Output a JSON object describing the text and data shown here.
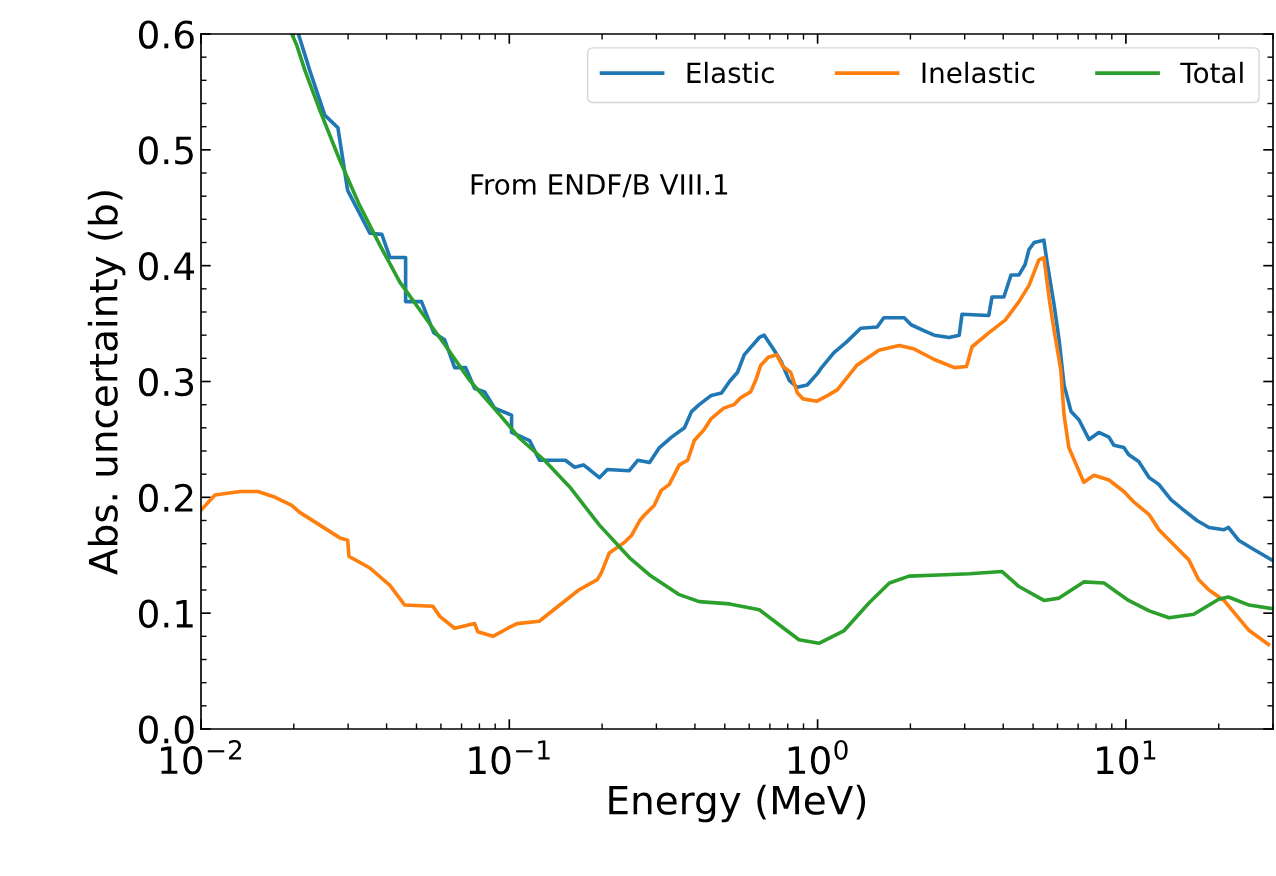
{
  "chart_data": {
    "type": "line",
    "xlabel": "Energy (MeV)",
    "ylabel": "Abs. uncertainty (b)",
    "log": "x",
    "grid": false,
    "legend": "top right",
    "marker": "none",
    "line_style": "solid",
    "xlim": [
      0.01,
      30
    ],
    "ylim": [
      0,
      0.6
    ],
    "xticks": [
      {
        "value": 0.01,
        "label": "10$^{−2}$"
      },
      {
        "value": 0.1,
        "label": "10$^{−1}$"
      },
      {
        "value": 1,
        "label": "10$^{0}$"
      },
      {
        "value": 10,
        "label": "10$^{1}$"
      }
    ],
    "yticks": [
      {
        "value": 0,
        "label": "0.0"
      },
      {
        "value": 0.1,
        "label": "0.1"
      },
      {
        "value": 0.2,
        "label": "0.2"
      },
      {
        "value": 0.3,
        "label": "0.3"
      },
      {
        "value": 0.4,
        "label": "0.4"
      },
      {
        "value": 0.5,
        "label": "0.5"
      },
      {
        "value": 0.6,
        "label": "0.6"
      }
    ],
    "annotations": [
      "From ENDF/B VIII.1"
    ],
    "series": [
      {
        "name": "Elastic",
        "color": "#1f77b4",
        "x": [
          0.0207,
          0.0225,
          0.0252,
          0.0278,
          0.0299,
          0.0353,
          0.0386,
          0.041,
          0.0461,
          0.0461,
          0.0519,
          0.0569,
          0.0617,
          0.0665,
          0.0722,
          0.0772,
          0.0832,
          0.0896,
          0.1017,
          0.1017,
          0.1164,
          0.1253,
          0.152,
          0.163,
          0.174,
          0.182,
          0.196,
          0.208,
          0.245,
          0.261,
          0.285,
          0.307,
          0.336,
          0.37,
          0.39,
          0.413,
          0.452,
          0.488,
          0.518,
          0.55,
          0.578,
          0.647,
          0.671,
          0.723,
          0.762,
          0.809,
          0.859,
          0.925,
          1.0,
          1.03,
          1.13,
          1.24,
          1.38,
          1.56,
          1.64,
          1.91,
          2.01,
          2.21,
          2.39,
          2.67,
          2.88,
          2.94,
          3.59,
          3.68,
          4.02,
          4.24,
          4.5,
          4.71,
          4.85,
          5.04,
          5.42,
          5.55,
          5.85,
          6.07,
          6.3,
          6.64,
          7.04,
          7.59,
          8.17,
          8.81,
          9.14,
          9.85,
          10.2,
          11.0,
          11.9,
          12.8,
          14.0,
          15.4,
          17.0,
          18.6,
          20.8,
          21.5,
          23.2,
          26.0,
          28.0,
          29.7
        ],
        "values": [
          0.6,
          0.569,
          0.53,
          0.519,
          0.465,
          0.428,
          0.427,
          0.407,
          0.407,
          0.369,
          0.369,
          0.342,
          0.336,
          0.312,
          0.312,
          0.294,
          0.291,
          0.277,
          0.271,
          0.256,
          0.249,
          0.232,
          0.232,
          0.226,
          0.228,
          0.224,
          0.217,
          0.224,
          0.223,
          0.232,
          0.23,
          0.243,
          0.252,
          0.26,
          0.274,
          0.28,
          0.288,
          0.29,
          0.3,
          0.308,
          0.323,
          0.338,
          0.34,
          0.327,
          0.317,
          0.301,
          0.295,
          0.297,
          0.307,
          0.312,
          0.325,
          0.334,
          0.346,
          0.347,
          0.355,
          0.355,
          0.349,
          0.344,
          0.34,
          0.338,
          0.34,
          0.358,
          0.357,
          0.373,
          0.373,
          0.392,
          0.392,
          0.401,
          0.414,
          0.42,
          0.422,
          0.403,
          0.366,
          0.336,
          0.297,
          0.274,
          0.267,
          0.25,
          0.256,
          0.252,
          0.245,
          0.243,
          0.237,
          0.231,
          0.217,
          0.211,
          0.198,
          0.189,
          0.18,
          0.174,
          0.172,
          0.174,
          0.163,
          0.155,
          0.15,
          0.146
        ]
      },
      {
        "name": "Inelastic",
        "color": "#ff7f0e",
        "x": [
          0.01,
          0.0111,
          0.0134,
          0.0153,
          0.0174,
          0.0197,
          0.0209,
          0.0243,
          0.0282,
          0.0299,
          0.0302,
          0.0353,
          0.041,
          0.0458,
          0.0565,
          0.0596,
          0.0665,
          0.0772,
          0.079,
          0.0885,
          0.0989,
          0.106,
          0.125,
          0.168,
          0.193,
          0.199,
          0.211,
          0.236,
          0.249,
          0.265,
          0.275,
          0.295,
          0.311,
          0.33,
          0.356,
          0.379,
          0.398,
          0.427,
          0.452,
          0.496,
          0.535,
          0.563,
          0.606,
          0.63,
          0.654,
          0.692,
          0.737,
          0.771,
          0.818,
          0.86,
          0.897,
          0.995,
          1.08,
          1.16,
          1.34,
          1.58,
          1.84,
          2.06,
          2.39,
          2.78,
          3.04,
          3.17,
          3.59,
          4.06,
          4.5,
          4.85,
          5.22,
          5.42,
          5.65,
          5.85,
          6.15,
          6.3,
          6.53,
          7.3,
          7.88,
          8.81,
          9.85,
          10.6,
          11.9,
          12.8,
          14.3,
          16.0,
          17.2,
          18.6,
          20.8,
          25.1,
          29.0
        ],
        "values": [
          0.189,
          0.202,
          0.205,
          0.205,
          0.2,
          0.193,
          0.187,
          0.176,
          0.165,
          0.163,
          0.149,
          0.139,
          0.124,
          0.107,
          0.106,
          0.097,
          0.087,
          0.091,
          0.084,
          0.08,
          0.087,
          0.091,
          0.093,
          0.12,
          0.129,
          0.135,
          0.152,
          0.161,
          0.167,
          0.18,
          0.185,
          0.193,
          0.206,
          0.211,
          0.228,
          0.232,
          0.249,
          0.258,
          0.268,
          0.277,
          0.28,
          0.286,
          0.291,
          0.301,
          0.314,
          0.321,
          0.323,
          0.313,
          0.308,
          0.29,
          0.285,
          0.283,
          0.288,
          0.293,
          0.314,
          0.327,
          0.331,
          0.328,
          0.319,
          0.312,
          0.313,
          0.33,
          0.342,
          0.353,
          0.369,
          0.383,
          0.405,
          0.407,
          0.37,
          0.344,
          0.31,
          0.271,
          0.243,
          0.213,
          0.219,
          0.215,
          0.205,
          0.196,
          0.185,
          0.172,
          0.159,
          0.146,
          0.129,
          0.12,
          0.111,
          0.085,
          0.073
        ]
      },
      {
        "name": "Total",
        "color": "#2ca02c",
        "x": [
          0.0197,
          0.0204,
          0.0217,
          0.0243,
          0.0282,
          0.0327,
          0.038,
          0.0441,
          0.0512,
          0.0617,
          0.0744,
          0.0933,
          0.108,
          0.13,
          0.157,
          0.196,
          0.245,
          0.285,
          0.356,
          0.413,
          0.518,
          0.647,
          0.75,
          0.87,
          1.01,
          1.22,
          1.47,
          1.71,
          1.98,
          2.48,
          3.11,
          3.96,
          4.5,
          5.42,
          6.07,
          7.3,
          8.49,
          10.2,
          11.9,
          13.8,
          16.6,
          20.0,
          21.5,
          25.1,
          29.7
        ],
        "values": [
          0.6,
          0.591,
          0.569,
          0.534,
          0.491,
          0.452,
          0.418,
          0.386,
          0.362,
          0.332,
          0.301,
          0.271,
          0.251,
          0.232,
          0.209,
          0.176,
          0.148,
          0.133,
          0.116,
          0.11,
          0.108,
          0.103,
          0.09,
          0.077,
          0.074,
          0.085,
          0.109,
          0.126,
          0.132,
          0.133,
          0.134,
          0.136,
          0.123,
          0.111,
          0.113,
          0.127,
          0.126,
          0.111,
          0.102,
          0.096,
          0.099,
          0.112,
          0.114,
          0.107,
          0.104
        ]
      }
    ]
  }
}
